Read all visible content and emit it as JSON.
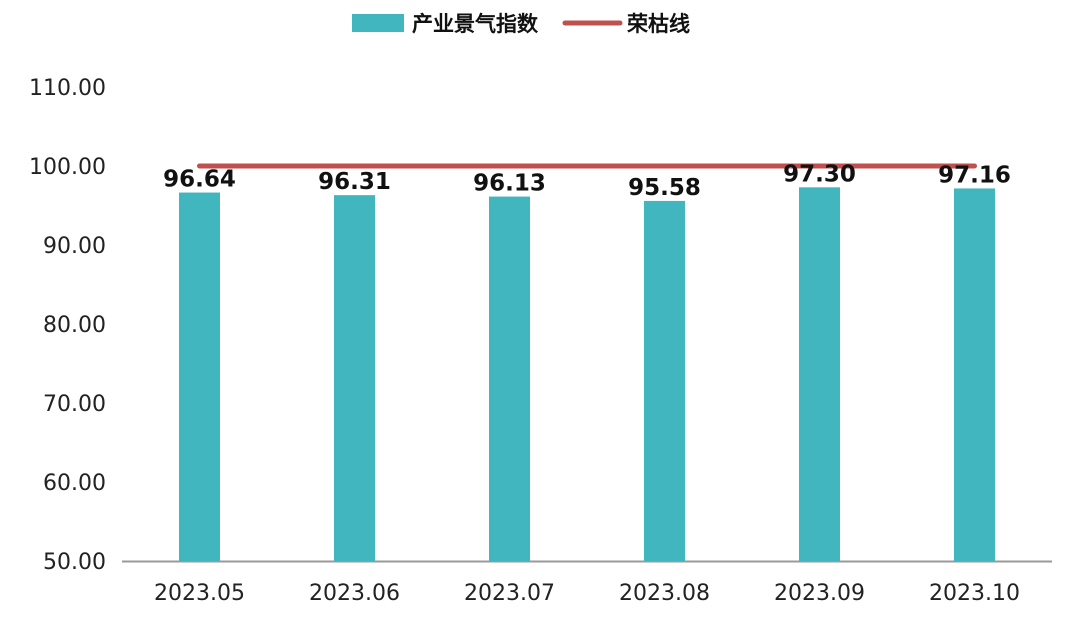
{
  "chart_data": {
    "type": "bar",
    "categories": [
      "2023.05",
      "2023.06",
      "2023.07",
      "2023.08",
      "2023.09",
      "2023.10"
    ],
    "series": [
      {
        "name": "产业景气指数",
        "type": "bar",
        "values": [
          96.64,
          96.31,
          96.13,
          95.58,
          97.3,
          97.16
        ],
        "labels": [
          "96.64",
          "96.31",
          "96.13",
          "95.58",
          "97.30",
          "97.16"
        ],
        "color": "#41B6BF"
      },
      {
        "name": "荣枯线",
        "type": "line",
        "values": [
          100,
          100,
          100,
          100,
          100,
          100
        ],
        "color": "#C0504D"
      }
    ],
    "yticks": [
      "50.00",
      "60.00",
      "70.00",
      "80.00",
      "90.00",
      "100.00",
      "110.00"
    ],
    "ylim": [
      50,
      110
    ],
    "legend_position": "top",
    "grid": false,
    "title": "",
    "xlabel": "",
    "ylabel": ""
  }
}
